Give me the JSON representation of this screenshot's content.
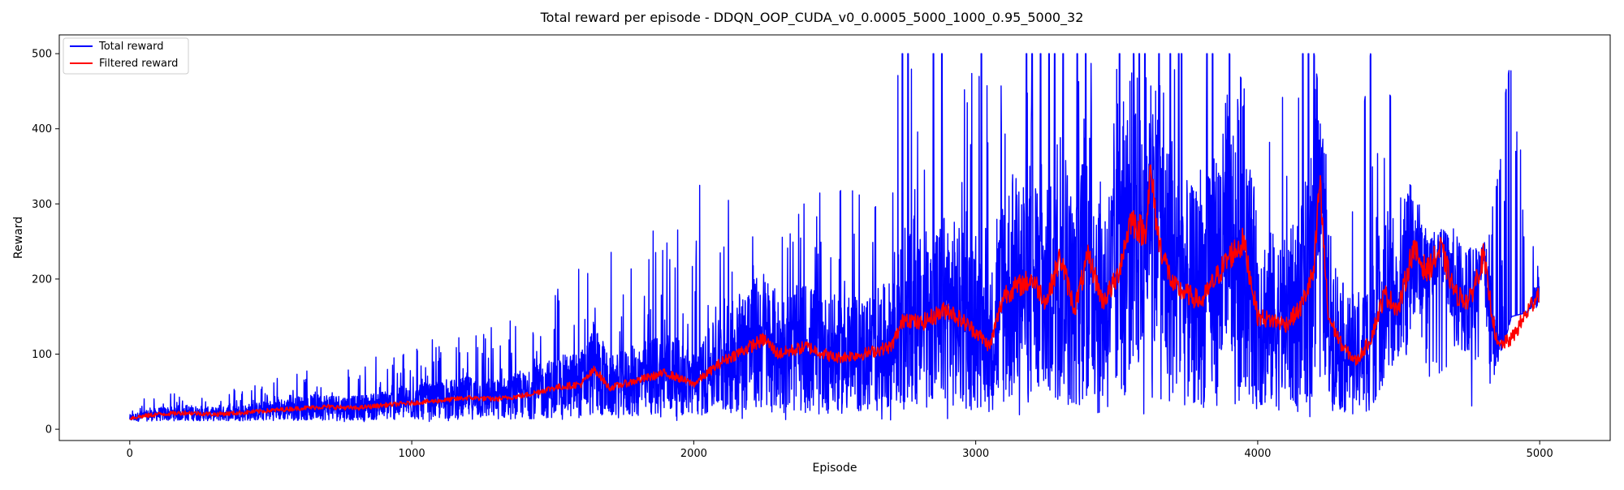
{
  "chart_data": {
    "type": "line",
    "title": "Total reward per episode - DDQN_OOP_CUDA_v0_0.0005_5000_1000_0.95_5000_32",
    "xlabel": "Episode",
    "ylabel": "Reward",
    "xlim": [
      -250,
      5250
    ],
    "ylim": [
      -15,
      525
    ],
    "xticks": [
      0,
      1000,
      2000,
      3000,
      4000,
      5000
    ],
    "yticks": [
      0,
      100,
      200,
      300,
      400,
      500
    ],
    "grid": false,
    "legend_position": "top-left",
    "episodes": 5000,
    "series": [
      {
        "name": "Total reward",
        "color": "#0000ff",
        "x": [
          0,
          100,
          200,
          300,
          400,
          500,
          600,
          700,
          800,
          900,
          1000,
          1100,
          1200,
          1300,
          1400,
          1500,
          1600,
          1700,
          1800,
          1900,
          2000,
          2100,
          2200,
          2300,
          2400,
          2500,
          2600,
          2700,
          2800,
          2900,
          3000,
          3100,
          3200,
          3300,
          3400,
          3500,
          3600,
          3700,
          3800,
          3900,
          4000,
          4100,
          4200,
          4300,
          4400,
          4500,
          4600,
          4700,
          4800,
          4900,
          5000
        ],
        "min": [
          10,
          10,
          10,
          10,
          10,
          10,
          10,
          10,
          10,
          10,
          10,
          10,
          10,
          10,
          10,
          10,
          10,
          10,
          10,
          10,
          12,
          12,
          14,
          12,
          12,
          12,
          12,
          12,
          12,
          12,
          12,
          12,
          12,
          12,
          12,
          12,
          12,
          12,
          12,
          12,
          12,
          12,
          12,
          12,
          12,
          90,
          70,
          15,
          12,
          150,
          160
        ],
        "max": [
          40,
          45,
          50,
          50,
          60,
          70,
          80,
          85,
          90,
          100,
          120,
          125,
          140,
          150,
          160,
          190,
          230,
          240,
          260,
          280,
          330,
          350,
          280,
          290,
          310,
          320,
          330,
          500,
          500,
          500,
          500,
          500,
          500,
          500,
          500,
          500,
          500,
          500,
          500,
          500,
          420,
          500,
          500,
          200,
          500,
          420,
          270,
          270,
          250,
          500,
          200
        ],
        "peak_episodes": [
          2740,
          2760,
          2850,
          2880,
          3020,
          3180,
          3200,
          3230,
          3260,
          3280,
          3310,
          3360,
          3390,
          3510,
          3560,
          3580,
          3600,
          3650,
          3690,
          3720,
          3730,
          3820,
          3840,
          3900,
          3940,
          4160,
          4180,
          4200,
          4210,
          4380,
          4400,
          4470,
          4880,
          4890
        ],
        "peak_value": 500
      },
      {
        "name": "Filtered reward",
        "color": "#ff0000",
        "x": [
          0,
          100,
          200,
          300,
          400,
          500,
          600,
          700,
          800,
          900,
          1000,
          1100,
          1200,
          1300,
          1400,
          1500,
          1600,
          1650,
          1700,
          1800,
          1900,
          2000,
          2100,
          2200,
          2250,
          2300,
          2400,
          2500,
          2600,
          2700,
          2750,
          2800,
          2900,
          3000,
          3050,
          3100,
          3200,
          3250,
          3300,
          3350,
          3400,
          3450,
          3500,
          3550,
          3600,
          3620,
          3650,
          3700,
          3800,
          3900,
          3950,
          4000,
          4100,
          4150,
          4200,
          4220,
          4250,
          4300,
          4350,
          4400,
          4450,
          4500,
          4550,
          4600,
          4650,
          4700,
          4750,
          4800,
          4850,
          4900,
          5000
        ],
        "y": [
          15,
          20,
          22,
          20,
          22,
          25,
          28,
          30,
          28,
          32,
          35,
          38,
          42,
          40,
          45,
          55,
          60,
          80,
          55,
          65,
          75,
          60,
          90,
          110,
          120,
          100,
          110,
          95,
          100,
          110,
          150,
          140,
          160,
          130,
          110,
          180,
          200,
          170,
          230,
          160,
          230,
          170,
          200,
          280,
          260,
          340,
          250,
          190,
          170,
          230,
          250,
          150,
          140,
          160,
          210,
          330,
          150,
          110,
          90,
          120,
          180,
          160,
          240,
          210,
          240,
          180,
          170,
          230,
          110,
          120,
          185
        ]
      }
    ]
  }
}
